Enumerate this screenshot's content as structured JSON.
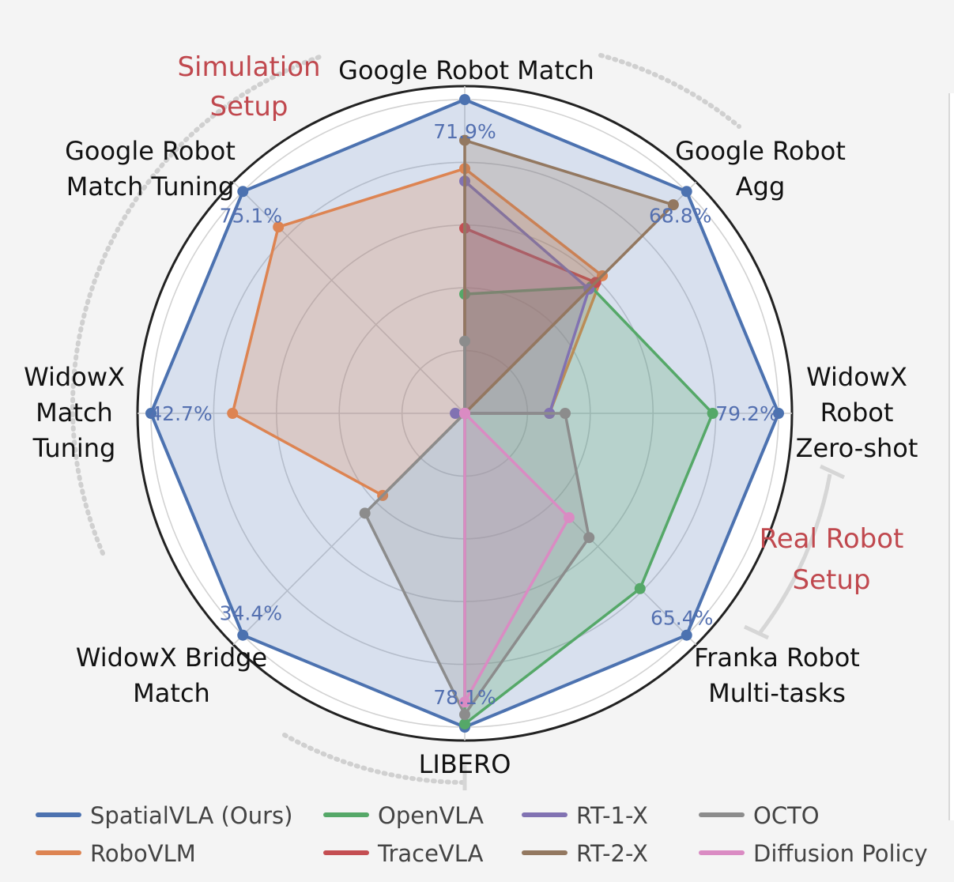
{
  "chart_data": {
    "type": "radar",
    "axes": [
      "Google Robot Match",
      "Google Robot Agg",
      "WidowX Robot Zero-shot",
      "Franka Robot Multi-tasks",
      "LIBERO",
      "WidowX Bridge Match",
      "WidowX Match Tuning",
      "Google Robot Match Tuning"
    ],
    "axis_label_lines": [
      [
        "Google Robot Match"
      ],
      [
        "Google Robot",
        "Agg"
      ],
      [
        "WidowX",
        "Robot",
        "Zero-shot"
      ],
      [
        "Franka Robot",
        "Multi-tasks"
      ],
      [
        "LIBERO"
      ],
      [
        "WidowX Bridge",
        "Match"
      ],
      [
        "WidowX",
        "Match",
        "Tuning"
      ],
      [
        "Google Robot",
        "Match Tuning"
      ]
    ],
    "value_labels": [
      "71.9%",
      "68.8%",
      "79.2%",
      "65.4%",
      "78.1%",
      "34.4%",
      "42.7%",
      "75.1%"
    ],
    "scale": "normalized per axis (SpatialVLA = 1.0)",
    "rlim": [
      0,
      1.0
    ],
    "grid_rings": [
      0.2,
      0.4,
      0.6,
      0.8,
      1.0
    ],
    "series": [
      {
        "name": "SpatialVLA (Ours)",
        "color": "#4c72b0",
        "values": [
          1.0,
          1.0,
          1.0,
          1.0,
          1.0,
          1.0,
          1.0,
          1.0
        ]
      },
      {
        "name": "RoboVLM",
        "color": "#dd8452",
        "values": [
          0.78,
          0.62,
          0.27,
          0.0,
          0.0,
          0.37,
          0.74,
          0.84
        ]
      },
      {
        "name": "OpenVLA",
        "color": "#55a868",
        "values": [
          0.38,
          0.57,
          0.79,
          0.79,
          0.99,
          0.0,
          0.0,
          0.0
        ]
      },
      {
        "name": "TraceVLA",
        "color": "#c44e52",
        "values": [
          0.59,
          0.59,
          0.0,
          0.0,
          0.0,
          0.0,
          0.0,
          0.0
        ]
      },
      {
        "name": "RT-1-X",
        "color": "#8172b2",
        "values": [
          0.74,
          0.56,
          0.27,
          0.0,
          0.0,
          0.0,
          0.03,
          0.0
        ]
      },
      {
        "name": "RT-2-X",
        "color": "#937860",
        "values": [
          0.87,
          0.94,
          0.0,
          0.0,
          0.0,
          0.0,
          0.0,
          0.0
        ]
      },
      {
        "name": "OCTO",
        "color": "#8c8c8c",
        "values": [
          0.23,
          0.0,
          0.32,
          0.56,
          0.96,
          0.45,
          0.0,
          0.0
        ]
      },
      {
        "name": "Diffusion Policy",
        "color": "#da8bc3",
        "values": [
          0.0,
          0.0,
          0.0,
          0.47,
          0.92,
          0.0,
          0.0,
          0.0
        ]
      }
    ],
    "setup_labels": {
      "simulation": [
        "Simulation",
        "Setup"
      ],
      "real": [
        "Real Robot",
        "Setup"
      ]
    },
    "legend": {
      "rows": [
        [
          "SpatialVLA (Ours)",
          "OpenVLA",
          "RT-1-X",
          "OCTO"
        ],
        [
          "RoboVLM",
          "TraceVLA",
          "RT-2-X",
          "Diffusion Policy"
        ]
      ]
    }
  }
}
